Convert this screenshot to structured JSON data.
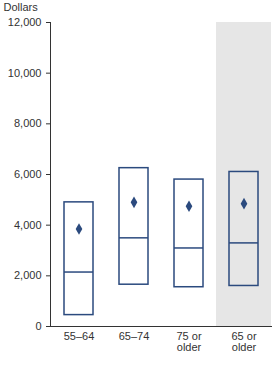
{
  "chart_data": {
    "type": "box",
    "y_label": "Dollars",
    "categories": [
      "55–64",
      "65–74",
      "75 or older",
      "65 or older"
    ],
    "q1": [
      450,
      1650,
      1550,
      1600
    ],
    "median": [
      2150,
      3500,
      3100,
      3300
    ],
    "q3": [
      4900,
      6250,
      5800,
      6100
    ],
    "mean": [
      3850,
      4900,
      4750,
      4850
    ],
    "color": "#2b4a7e",
    "marker": "diamond",
    "ylim": [
      0,
      12000
    ],
    "yticks": [
      0,
      {
        "value": 2000,
        "label": "2,000"
      },
      {
        "value": 4000,
        "label": "4,000"
      },
      {
        "value": 6000,
        "label": "6,000"
      },
      {
        "value": 8000,
        "label": "8,000"
      },
      {
        "value": 10000,
        "label": "10,000"
      },
      {
        "value": 12000,
        "label": "12,000"
      }
    ],
    "grid": false
  }
}
